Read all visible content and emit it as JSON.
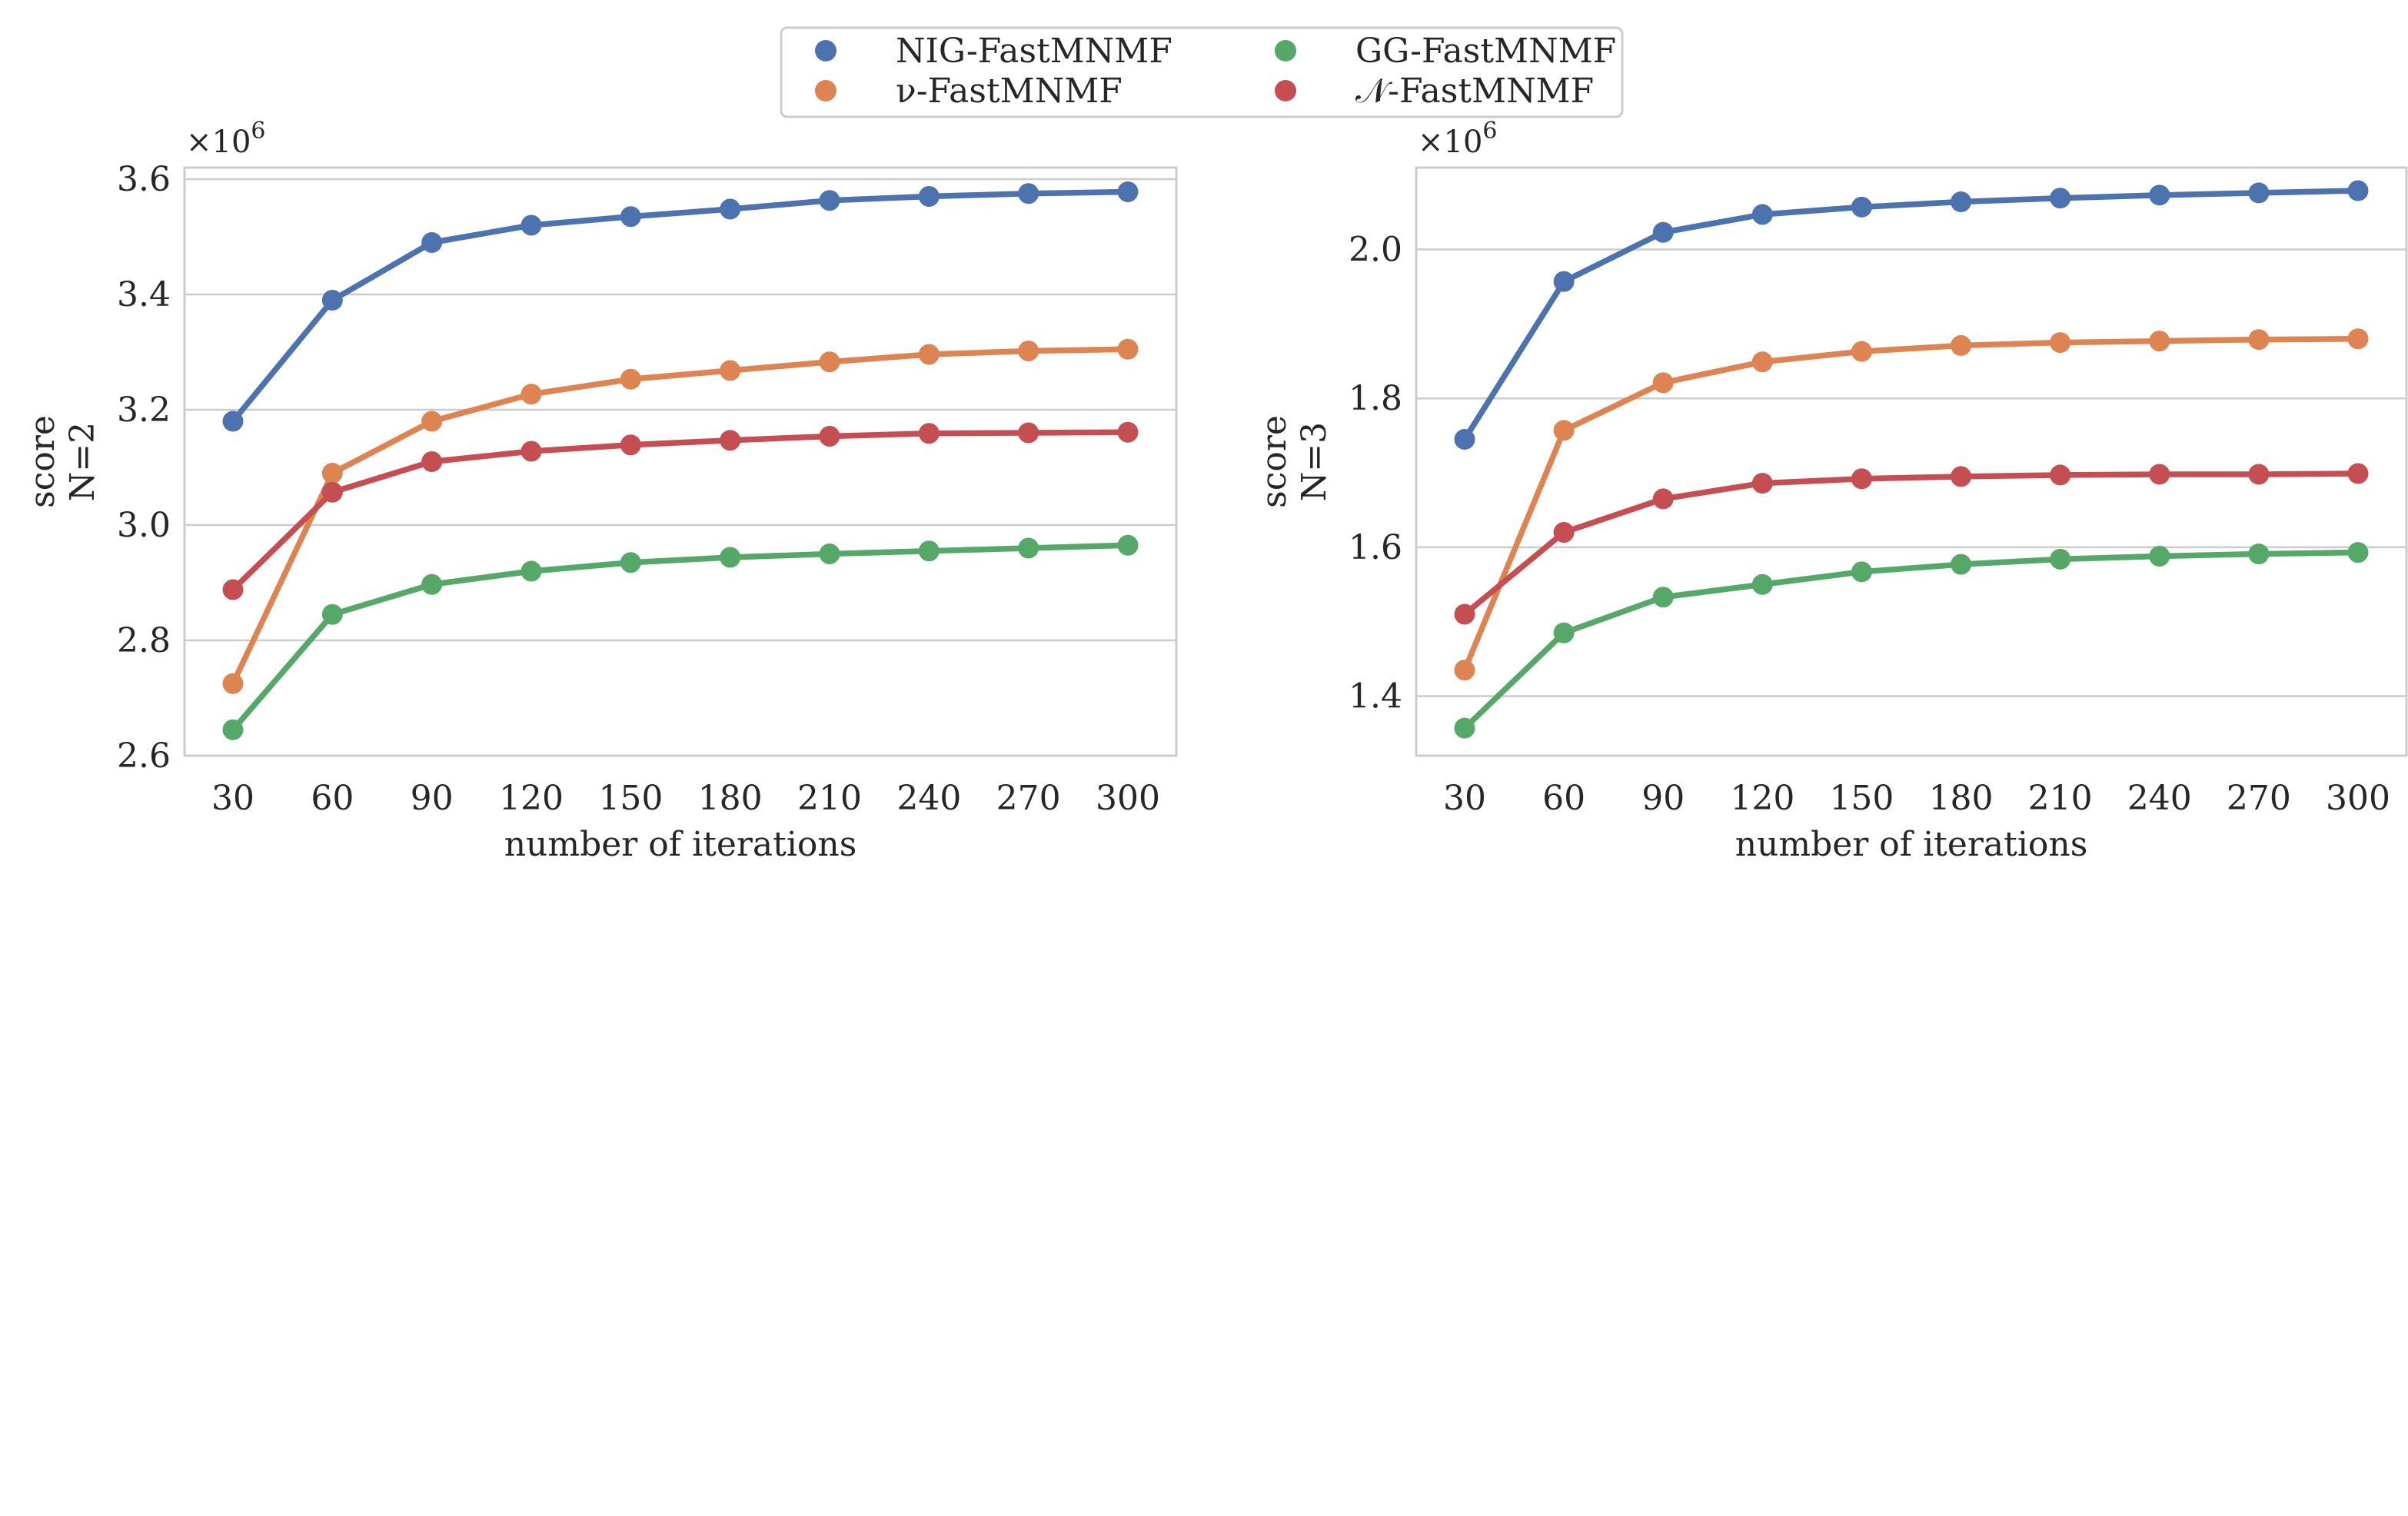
{
  "colors": {
    "NIG-FastMNMF": "#4c72b0",
    "GG-FastMNMF": "#55a868",
    "nu-FastMNMF": "#dd8452",
    "N-FastMNMF": "#c44e52",
    "grid": "#cccccc",
    "frame": "#cccccc"
  },
  "legend": {
    "items": [
      {
        "key": "NIG-FastMNMF",
        "label": "NIG-FastMNMF"
      },
      {
        "key": "nu-FastMNMF",
        "label": "ν-FastMNMF"
      },
      {
        "key": "GG-FastMNMF",
        "label": "GG-FastMNMF"
      },
      {
        "key": "N-FastMNMF",
        "label": "𝒩-FastMNMF"
      }
    ]
  },
  "chart_data": [
    {
      "type": "line",
      "title": "",
      "xlabel": "number of iterations",
      "ylabel": [
        "score",
        "N=2"
      ],
      "y_multiplier": "×10^6",
      "y_multiplier_base": "×10",
      "y_multiplier_exp": "6",
      "categories": [
        "30",
        "60",
        "90",
        "120",
        "150",
        "180",
        "210",
        "240",
        "270",
        "300"
      ],
      "ylim": [
        2.6,
        3.62
      ],
      "yticks": [
        "2.6",
        "2.8",
        "3.0",
        "3.2",
        "3.4",
        "3.6"
      ],
      "grid": true,
      "series": [
        {
          "name": "NIG-FastMNMF",
          "key": "NIG-FastMNMF",
          "values": [
            3.18,
            3.39,
            3.49,
            3.52,
            3.535,
            3.548,
            3.563,
            3.57,
            3.575,
            3.578
          ]
        },
        {
          "name": "ν-FastMNMF",
          "key": "nu-FastMNMF",
          "values": [
            2.725,
            3.09,
            3.18,
            3.227,
            3.253,
            3.268,
            3.283,
            3.296,
            3.302,
            3.305
          ]
        },
        {
          "name": "𝒩-FastMNMF",
          "key": "N-FastMNMF",
          "values": [
            2.888,
            3.057,
            3.11,
            3.128,
            3.139,
            3.147,
            3.154,
            3.159,
            3.16,
            3.161
          ]
        },
        {
          "name": "GG-FastMNMF",
          "key": "GG-FastMNMF",
          "values": [
            2.645,
            2.845,
            2.897,
            2.92,
            2.935,
            2.944,
            2.95,
            2.955,
            2.96,
            2.965
          ]
        }
      ]
    },
    {
      "type": "line",
      "title": "",
      "xlabel": "number of iterations",
      "ylabel": [
        "score",
        "N=3"
      ],
      "y_multiplier": "×10^6",
      "y_multiplier_base": "×10",
      "y_multiplier_exp": "6",
      "categories": [
        "30",
        "60",
        "90",
        "120",
        "150",
        "180",
        "210",
        "240",
        "270",
        "300"
      ],
      "ylim": [
        1.32,
        2.11
      ],
      "yticks": [
        "1.4",
        "1.6",
        "1.8",
        "2.0"
      ],
      "grid": true,
      "series": [
        {
          "name": "NIG-FastMNMF",
          "key": "NIG-FastMNMF",
          "values": [
            1.745,
            1.957,
            2.023,
            2.047,
            2.057,
            2.064,
            2.069,
            2.073,
            2.076,
            2.079
          ]
        },
        {
          "name": "ν-FastMNMF",
          "key": "nu-FastMNMF",
          "values": [
            1.435,
            1.757,
            1.821,
            1.849,
            1.863,
            1.871,
            1.875,
            1.877,
            1.879,
            1.88
          ]
        },
        {
          "name": "𝒩-FastMNMF",
          "key": "N-FastMNMF",
          "values": [
            1.51,
            1.62,
            1.665,
            1.686,
            1.692,
            1.695,
            1.697,
            1.698,
            1.698,
            1.699
          ]
        },
        {
          "name": "GG-FastMNMF",
          "key": "GG-FastMNMF",
          "values": [
            1.357,
            1.485,
            1.533,
            1.55,
            1.567,
            1.577,
            1.584,
            1.588,
            1.591,
            1.593
          ]
        }
      ]
    }
  ]
}
